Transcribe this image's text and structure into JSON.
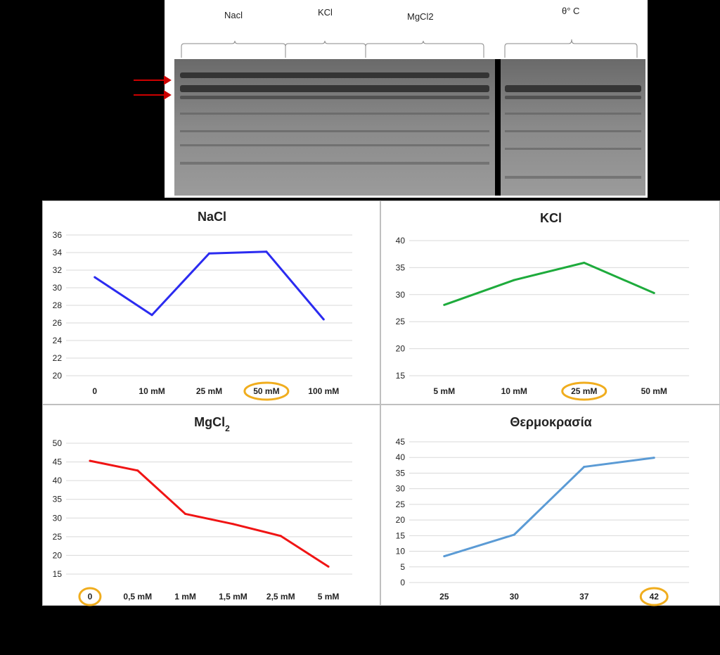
{
  "gel": {
    "group_labels": [
      "Nacl",
      "KCl",
      "MgCl2",
      "θ° C"
    ]
  },
  "colors": {
    "nacl": "#2b2bf0",
    "kcl": "#1eab3c",
    "mgcl2": "#f01414",
    "temp": "#5b9bd5",
    "highlight": "#f0ad1e",
    "arrow": "#cc0000"
  },
  "chart_data": [
    {
      "type": "line",
      "title": "NaCl",
      "categories": [
        "0",
        "10 mM",
        "25 mM",
        "50 mM",
        "100 mM"
      ],
      "values": [
        31.2,
        26.9,
        33.9,
        34.1,
        26.4
      ],
      "ylim": [
        20,
        36
      ],
      "yticks": [
        20,
        22,
        24,
        26,
        28,
        30,
        32,
        34,
        36
      ],
      "highlight": "50 mM",
      "grid": true,
      "color": "#2b2bf0"
    },
    {
      "type": "line",
      "title": "KCl",
      "categories": [
        "5 mM",
        "10 mM",
        "25 mM",
        "50 mM"
      ],
      "values": [
        28.1,
        32.7,
        35.9,
        30.3
      ],
      "ylim": [
        15,
        40
      ],
      "yticks": [
        15,
        20,
        25,
        30,
        35,
        40
      ],
      "highlight": "25 mM",
      "grid": true,
      "color": "#1eab3c"
    },
    {
      "type": "line",
      "title": "MgCl",
      "title_subscript": "2",
      "categories": [
        "0",
        "0,5 mM",
        "1 mM",
        "1,5 mM",
        "2,5 mM",
        "5 mM"
      ],
      "values": [
        45.3,
        42.7,
        31.1,
        28.4,
        25.2,
        17.0
      ],
      "ylim": [
        15,
        50
      ],
      "yticks": [
        15,
        20,
        25,
        30,
        35,
        40,
        45,
        50
      ],
      "highlight": "0",
      "grid": true,
      "color": "#f01414"
    },
    {
      "type": "line",
      "title": "Θερμοκρασία",
      "categories": [
        "25",
        "30",
        "37",
        "42"
      ],
      "values": [
        8.4,
        15.3,
        37.0,
        39.9
      ],
      "ylim": [
        0,
        45
      ],
      "yticks": [
        0,
        5,
        10,
        15,
        20,
        25,
        30,
        35,
        40,
        45
      ],
      "highlight": "42",
      "grid": true,
      "color": "#5b9bd5"
    }
  ]
}
